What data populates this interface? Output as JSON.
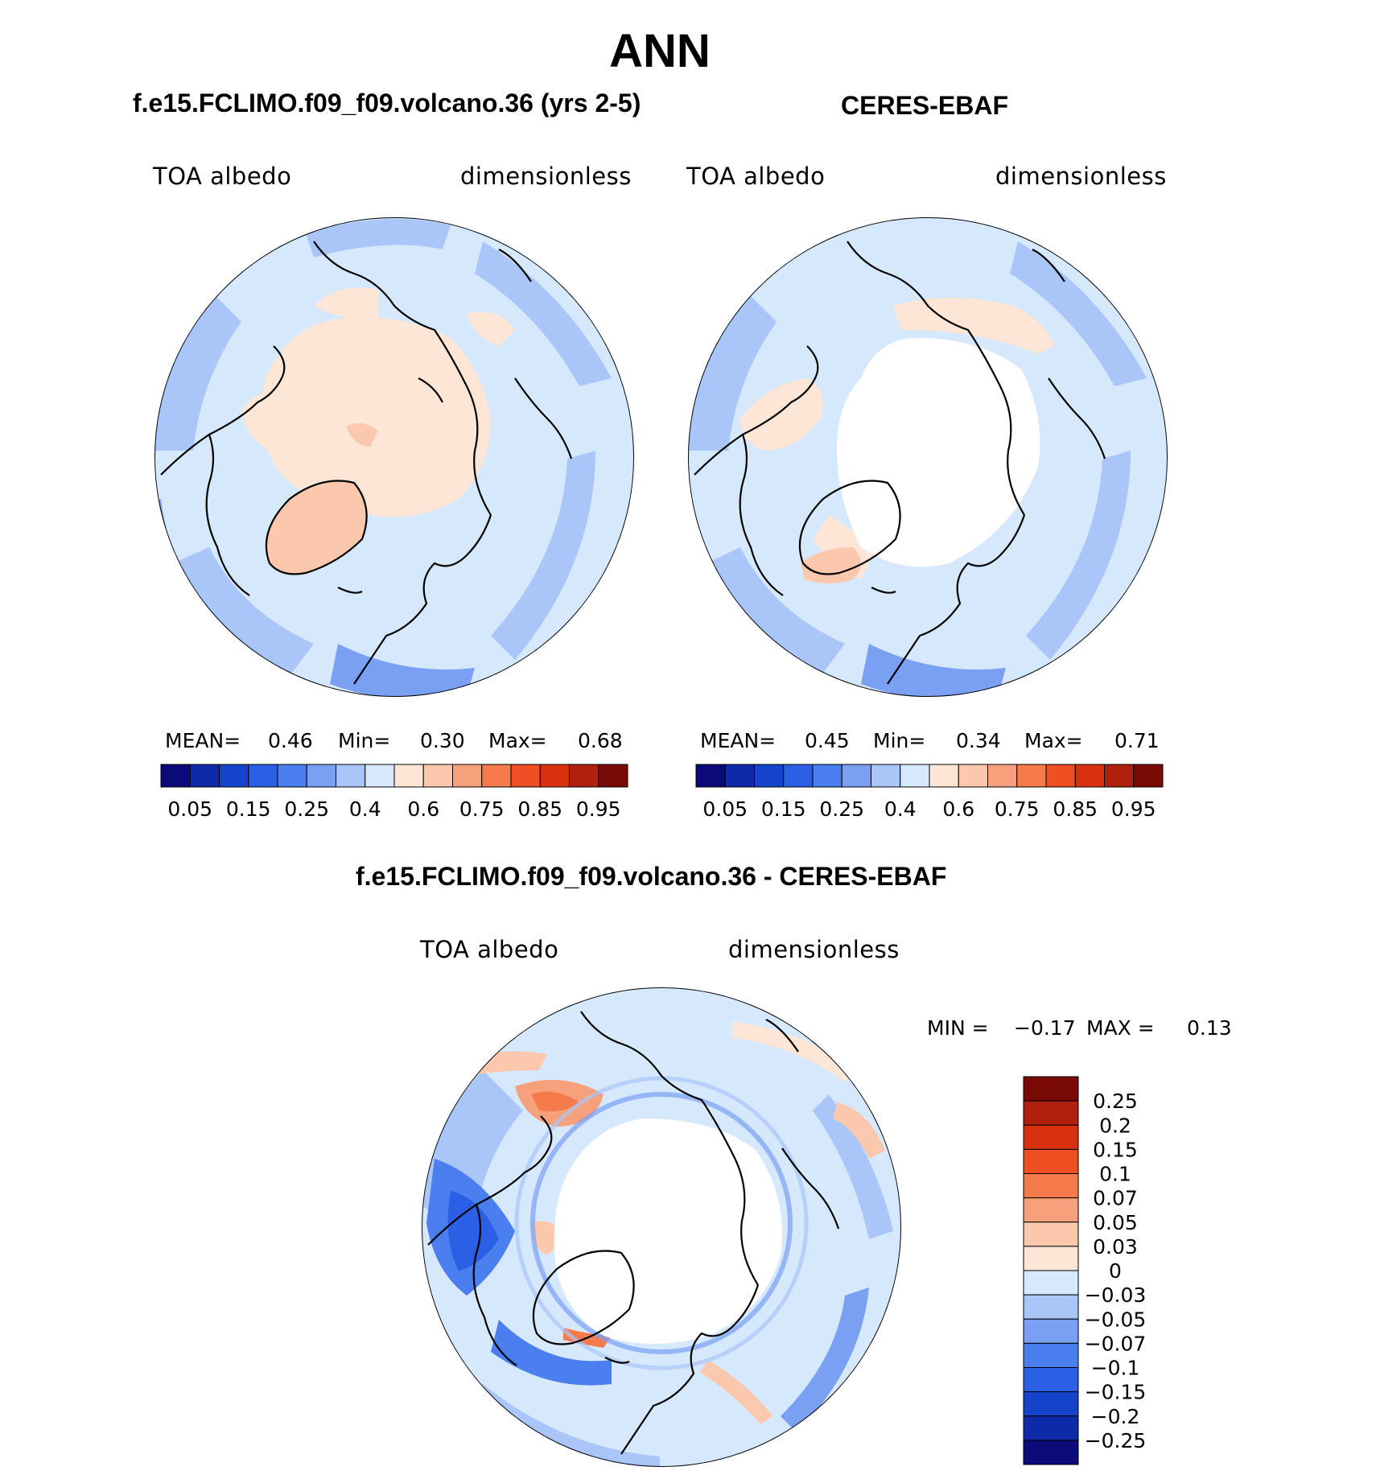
{
  "figure": {
    "title": "ANN"
  },
  "chart_data": [
    {
      "type": "heatmap",
      "title": "f.e15.FCLIMO.f09_f09.volcano.36 (yrs 2-5)",
      "left_label": "TOA albedo",
      "right_label": "dimensionless",
      "projection": "north polar stereographic",
      "stats": {
        "mean_label": "MEAN=",
        "mean": "0.46",
        "min_label": "Min=",
        "min": "0.30",
        "max_label": "Max=",
        "max": "0.68"
      },
      "colorbar": {
        "orientation": "horizontal",
        "levels": [
          "0.05",
          "0.1",
          "0.15",
          "0.2",
          "0.25",
          "0.3",
          "0.4",
          "0.5",
          "0.6",
          "0.7",
          "0.75",
          "0.8",
          "0.85",
          "0.9",
          "0.95"
        ],
        "tick_labels": [
          "0.05",
          "0.15",
          "0.25",
          "0.4",
          "0.6",
          "0.75",
          "0.85",
          "0.95"
        ],
        "colors": [
          "#0a0a78",
          "#0f2aa8",
          "#1543cc",
          "#2a5fe6",
          "#4b7ff0",
          "#7aa0f4",
          "#aac6f8",
          "#d6e8fb",
          "#fde6d6",
          "#fbc8ad",
          "#f7a07c",
          "#f57a4c",
          "#f04e23",
          "#d83110",
          "#b0200c",
          "#7a0a06"
        ]
      }
    },
    {
      "type": "heatmap",
      "title": "CERES-EBAF",
      "left_label": "TOA albedo",
      "right_label": "dimensionless",
      "projection": "north polar stereographic",
      "stats": {
        "mean_label": "MEAN=",
        "mean": "0.45",
        "min_label": "Min=",
        "min": "0.34",
        "max_label": "Max=",
        "max": "0.71"
      },
      "colorbar": {
        "orientation": "horizontal",
        "levels": [
          "0.05",
          "0.1",
          "0.15",
          "0.2",
          "0.25",
          "0.3",
          "0.4",
          "0.5",
          "0.6",
          "0.7",
          "0.75",
          "0.8",
          "0.85",
          "0.9",
          "0.95"
        ],
        "tick_labels": [
          "0.05",
          "0.15",
          "0.25",
          "0.4",
          "0.6",
          "0.75",
          "0.85",
          "0.95"
        ],
        "colors": [
          "#0a0a78",
          "#0f2aa8",
          "#1543cc",
          "#2a5fe6",
          "#4b7ff0",
          "#7aa0f4",
          "#aac6f8",
          "#d6e8fb",
          "#fde6d6",
          "#fbc8ad",
          "#f7a07c",
          "#f57a4c",
          "#f04e23",
          "#d83110",
          "#b0200c",
          "#7a0a06"
        ]
      }
    },
    {
      "type": "heatmap",
      "title": "f.e15.FCLIMO.f09_f09.volcano.36 - CERES-EBAF",
      "left_label": "TOA albedo",
      "right_label": "dimensionless",
      "projection": "north polar stereographic",
      "stats": {
        "min_label": "MIN =",
        "min": "−0.17",
        "max_label": "MAX =",
        "max": "0.13"
      },
      "colorbar": {
        "orientation": "vertical",
        "levels": [
          "0.25",
          "0.2",
          "0.15",
          "0.1",
          "0.07",
          "0.05",
          "0.03",
          "0",
          "−0.03",
          "−0.05",
          "−0.07",
          "−0.1",
          "−0.15",
          "−0.2",
          "−0.25"
        ],
        "tick_labels": [
          "0.25",
          "0.2",
          "0.15",
          "0.1",
          "0.07",
          "0.05",
          "0.03",
          "0",
          "−0.03",
          "−0.05",
          "−0.07",
          "−0.1",
          "−0.15",
          "−0.2",
          "−0.25"
        ],
        "colors": [
          "#7a0a06",
          "#b0200c",
          "#d83110",
          "#f04e23",
          "#f57a4c",
          "#f7a07c",
          "#fbc8ad",
          "#fde6d6",
          "#d6e8fb",
          "#aac6f8",
          "#7aa0f4",
          "#4b7ff0",
          "#2a5fe6",
          "#1543cc",
          "#0f2aa8",
          "#0a0a78"
        ]
      }
    }
  ]
}
